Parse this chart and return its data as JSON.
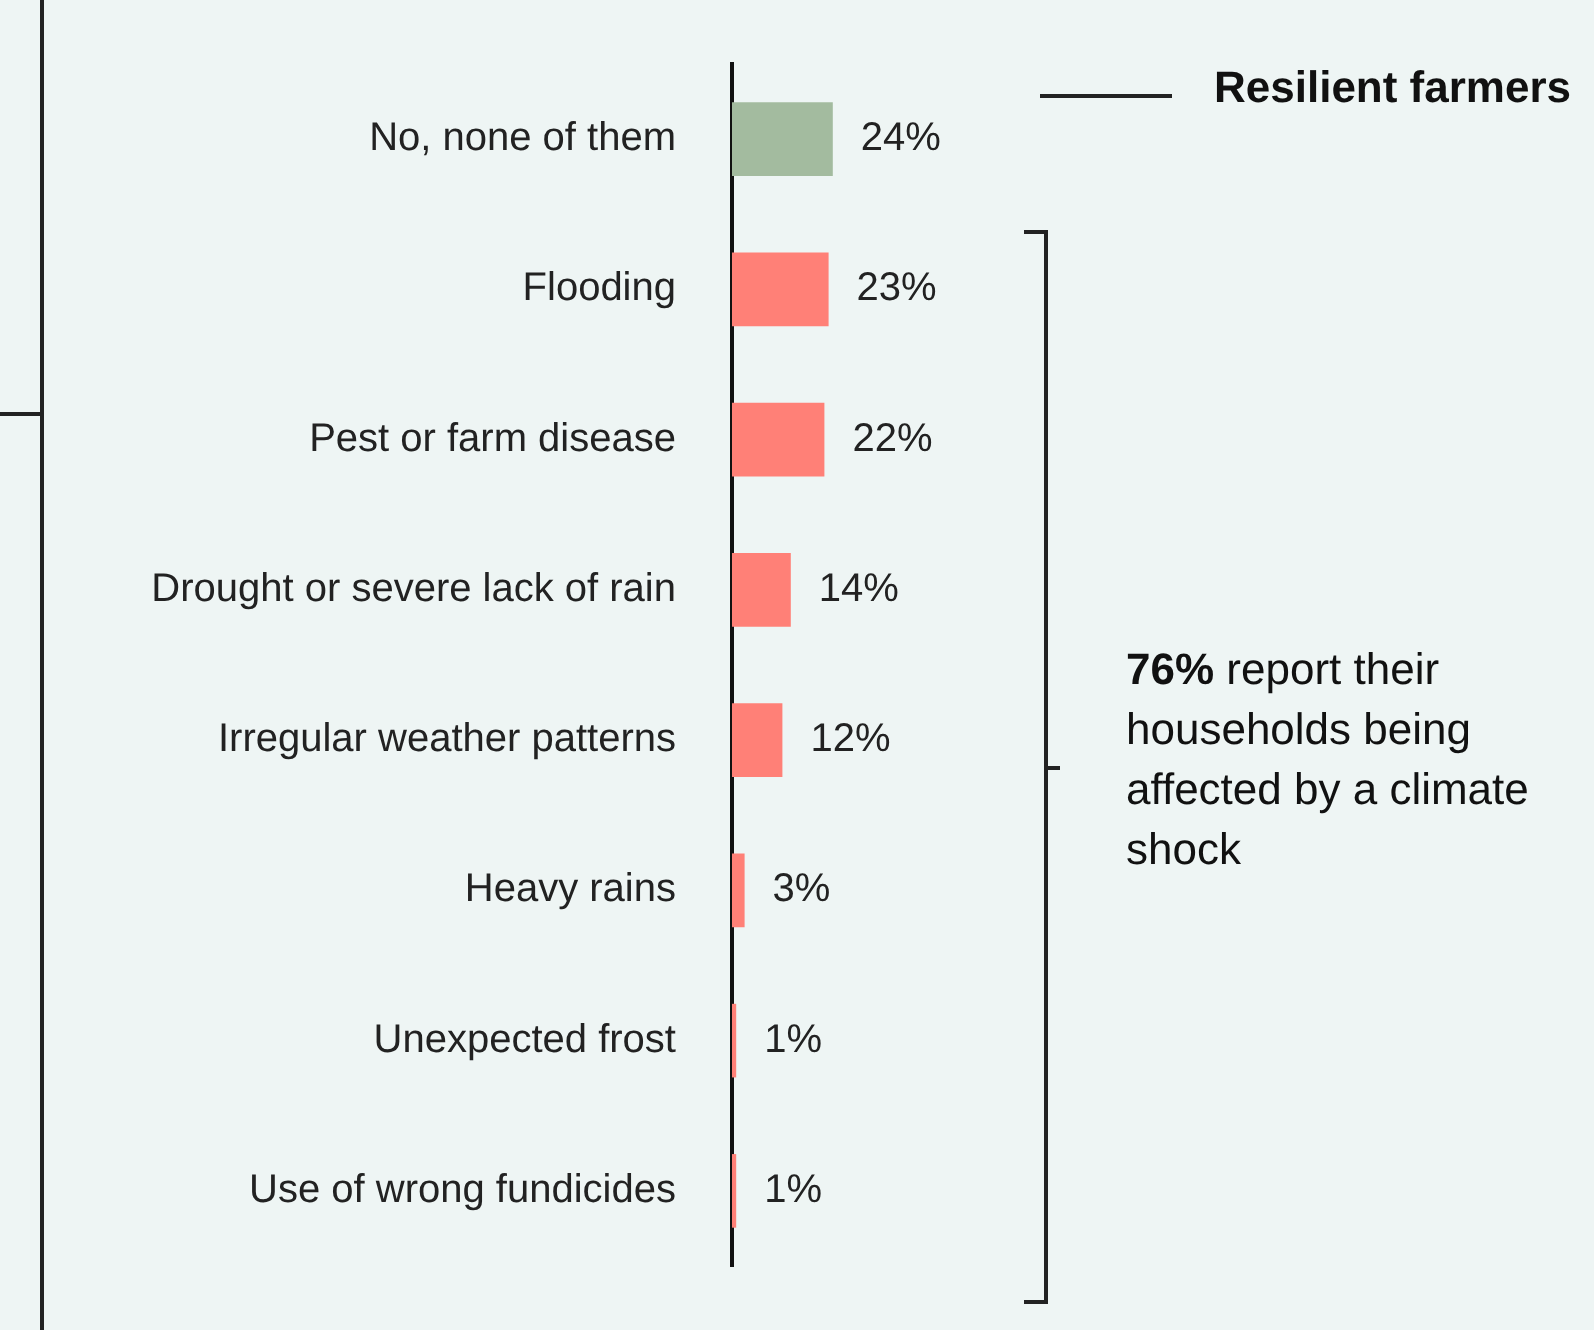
{
  "chart_data": {
    "type": "bar",
    "orientation": "horizontal",
    "categories": [
      "No, none of them",
      "Flooding",
      "Pest or farm disease",
      "Drought or severe lack of rain",
      "Irregular weather patterns",
      "Heavy rains",
      "Unexpected frost",
      "Use of wrong fundicides"
    ],
    "values": [
      24,
      23,
      22,
      14,
      12,
      3,
      1,
      1
    ],
    "value_labels": [
      "24%",
      "23%",
      "22%",
      "14%",
      "12%",
      "3%",
      "1%",
      "1%"
    ],
    "colors": [
      "#a3bb9f",
      "#ff8077",
      "#ff8077",
      "#ff8077",
      "#ff8077",
      "#ff8077",
      "#ff8077",
      "#ff8077"
    ],
    "tick_labels": "y",
    "grid": false,
    "legend": false,
    "annotations": [
      "Resilient farmers",
      "76% report their households being affected by a climate shock"
    ]
  }
}
